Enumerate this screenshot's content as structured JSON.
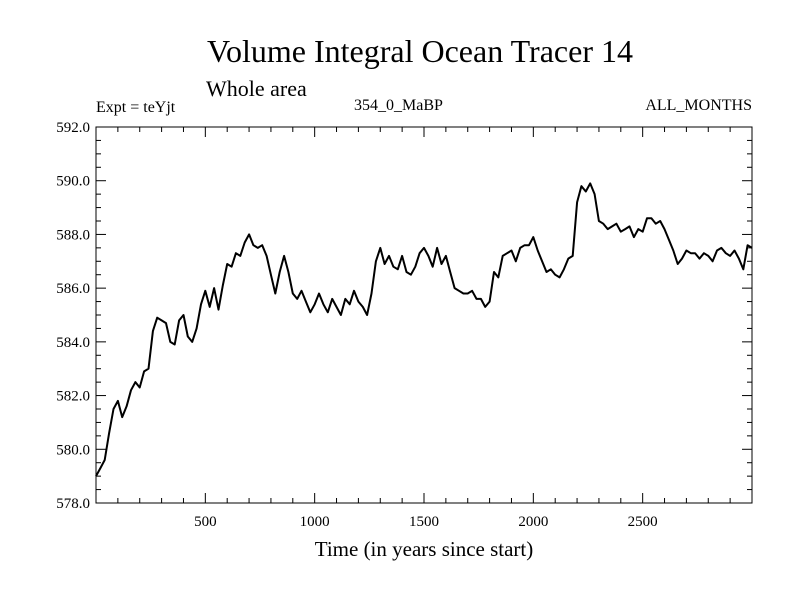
{
  "chart_data": {
    "type": "line",
    "title": "Volume Integral Ocean Tracer 14",
    "subtitle": "Whole area",
    "annotations": {
      "left": "Expt = teYjt",
      "center": "354_0_MaBP",
      "right": "ALL_MONTHS"
    },
    "xlabel": "Time (in years since start)",
    "ylabel": "",
    "xlim": [
      0,
      3000
    ],
    "ylim": [
      578.0,
      592.0
    ],
    "x_ticks": [
      500,
      1000,
      1500,
      2000,
      2500
    ],
    "y_ticks": [
      "578.0",
      "580.0",
      "582.0",
      "584.0",
      "586.0",
      "588.0",
      "590.0",
      "592.0"
    ],
    "series": [
      {
        "name": "Volume Integral Ocean Tracer 14",
        "x": [
          0,
          20,
          40,
          60,
          80,
          100,
          120,
          140,
          160,
          180,
          200,
          220,
          240,
          260,
          280,
          300,
          320,
          340,
          360,
          380,
          400,
          420,
          440,
          460,
          480,
          500,
          520,
          540,
          560,
          580,
          600,
          620,
          640,
          660,
          680,
          700,
          720,
          740,
          760,
          780,
          800,
          820,
          840,
          860,
          880,
          900,
          920,
          940,
          960,
          980,
          1000,
          1020,
          1040,
          1060,
          1080,
          1100,
          1120,
          1140,
          1160,
          1180,
          1200,
          1220,
          1240,
          1260,
          1280,
          1300,
          1320,
          1340,
          1360,
          1380,
          1400,
          1420,
          1440,
          1460,
          1480,
          1500,
          1520,
          1540,
          1560,
          1580,
          1600,
          1620,
          1640,
          1660,
          1680,
          1700,
          1720,
          1740,
          1760,
          1780,
          1800,
          1820,
          1840,
          1860,
          1880,
          1900,
          1920,
          1940,
          1960,
          1980,
          2000,
          2020,
          2040,
          2060,
          2080,
          2100,
          2120,
          2140,
          2160,
          2180,
          2200,
          2220,
          2240,
          2260,
          2280,
          2300,
          2320,
          2340,
          2360,
          2380,
          2400,
          2420,
          2440,
          2460,
          2480,
          2500,
          2520,
          2540,
          2560,
          2580,
          2600,
          2620,
          2640,
          2660,
          2680,
          2700,
          2720,
          2740,
          2760,
          2780,
          2800,
          2820,
          2840,
          2860,
          2880,
          2900,
          2920,
          2940,
          2960,
          2980,
          3000
        ],
        "values": [
          579.0,
          579.3,
          579.6,
          580.6,
          581.5,
          581.8,
          581.2,
          581.6,
          582.2,
          582.5,
          582.3,
          582.9,
          583.0,
          584.4,
          584.9,
          584.8,
          584.7,
          584.0,
          583.9,
          584.8,
          585.0,
          584.2,
          584.0,
          584.5,
          585.4,
          585.9,
          585.3,
          586.0,
          585.2,
          586.1,
          586.9,
          586.8,
          587.3,
          587.2,
          587.7,
          588.0,
          587.6,
          587.5,
          587.6,
          587.2,
          586.5,
          585.8,
          586.6,
          587.2,
          586.6,
          585.8,
          585.6,
          585.9,
          585.5,
          585.1,
          585.4,
          585.8,
          585.4,
          585.1,
          585.6,
          585.3,
          585.0,
          585.6,
          585.4,
          585.9,
          585.5,
          585.3,
          585.0,
          585.8,
          587.0,
          587.5,
          586.9,
          587.2,
          586.8,
          586.7,
          587.2,
          586.6,
          586.5,
          586.8,
          587.3,
          587.5,
          587.2,
          586.8,
          587.5,
          586.9,
          587.2,
          586.6,
          586.0,
          585.9,
          585.8,
          585.8,
          585.9,
          585.6,
          585.6,
          585.3,
          585.5,
          586.6,
          586.4,
          587.2,
          587.3,
          587.4,
          587.0,
          587.5,
          587.6,
          587.6,
          587.9,
          587.4,
          587.0,
          586.6,
          586.7,
          586.5,
          586.4,
          586.7,
          587.1,
          587.2,
          589.2,
          589.8,
          589.6,
          589.9,
          589.5,
          588.5,
          588.4,
          588.2,
          588.3,
          588.4,
          588.1,
          588.2,
          588.3,
          587.9,
          588.2,
          588.1,
          588.6,
          588.6,
          588.4,
          588.5,
          588.2,
          587.8,
          587.4,
          586.9,
          587.1,
          587.4,
          587.3,
          587.3,
          587.1,
          587.3,
          587.2,
          587.0,
          587.4,
          587.5,
          587.3,
          587.2,
          587.4,
          587.1,
          586.7,
          587.6,
          587.5
        ]
      }
    ]
  }
}
